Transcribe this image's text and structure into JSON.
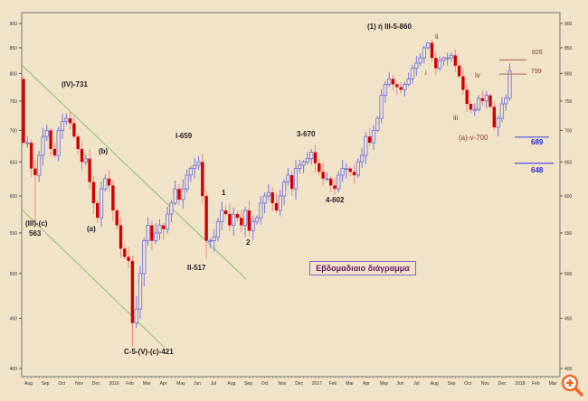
{
  "chart_data": {
    "type": "candlestick",
    "title": "Εβδομαδιαιο διάγραμμα",
    "scale": "log",
    "ylim": [
      400,
      900
    ],
    "yticks": [
      400,
      450,
      500,
      550,
      600,
      650,
      700,
      750,
      800,
      850,
      900
    ],
    "xticks": [
      "Aug",
      "Sep",
      "Oct",
      "Nov",
      "Dec",
      "2016",
      "Feb",
      "Mar",
      "Apr",
      "May",
      "Jun",
      "Jul",
      "Aug",
      "Sep",
      "Oct",
      "Nov",
      "Dec",
      "2017",
      "Feb",
      "Mar",
      "Apr",
      "May",
      "Jun",
      "Jul",
      "Aug",
      "Sep",
      "Oct",
      "Nov",
      "Dec",
      "2018",
      "Feb",
      "Mar"
    ],
    "closes": [
      680,
      680,
      640,
      630,
      660,
      690,
      700,
      670,
      660,
      700,
      715,
      720,
      712,
      690,
      670,
      650,
      655,
      620,
      590,
      570,
      610,
      625,
      615,
      580,
      560,
      530,
      520,
      515,
      445,
      460,
      500,
      540,
      560,
      540,
      550,
      560,
      555,
      575,
      590,
      610,
      595,
      610,
      630,
      640,
      645,
      650,
      600,
      540,
      540,
      545,
      565,
      580,
      575,
      560,
      575,
      570,
      560,
      580,
      553,
      565,
      570,
      590,
      600,
      605,
      590,
      580,
      600,
      620,
      630,
      610,
      640,
      645,
      650,
      655,
      665,
      648,
      635,
      625,
      625,
      615,
      610,
      630,
      640,
      640,
      635,
      630,
      650,
      660,
      690,
      680,
      700,
      720,
      760,
      780,
      790,
      780,
      775,
      770,
      780,
      790,
      810,
      820,
      830,
      850,
      860,
      830,
      810,
      825,
      830,
      830,
      835,
      815,
      795,
      770,
      745,
      735,
      735,
      755,
      750,
      760,
      740,
      705,
      720,
      745,
      755,
      805
    ],
    "first_open": 790,
    "extremes": {
      "0": {
        "h": 795
      },
      "3": {
        "l": 563
      },
      "12": {
        "h": 731
      },
      "28": {
        "l": 421
      },
      "45": {
        "h": 659
      },
      "47": {
        "l": 517
      },
      "74": {
        "h": 670
      },
      "80": {
        "l": 602
      },
      "104": {
        "h": 860
      },
      "121": {
        "l": 700
      }
    },
    "levels": [
      {
        "value": 826,
        "label": "826",
        "color": "#b07868"
      },
      {
        "value": 799,
        "label": "799",
        "color": "#b07868"
      },
      {
        "value": 689,
        "label": "689",
        "color": "#5050e0"
      },
      {
        "value": 648,
        "label": "648",
        "color": "#5050e0"
      }
    ],
    "annotations": {
      "iv_731": "(IV)-731",
      "b": "(b)",
      "a": "(a)",
      "iii_c": "(III)-(c)",
      "v563": "563",
      "c5": "C-5-(V)-(c)-421",
      "I659": "I-659",
      "II517": "II-517",
      "w1": "1",
      "w2": "2",
      "w3": "3-670",
      "w4": "4-602",
      "top": "(1) ή III-5-860",
      "sii": "ii",
      "si": "i",
      "siii": "iii",
      "siv": "iv",
      "sv": "(a)-v-700"
    },
    "colors": {
      "up": "#7878e0",
      "down": "#d40000",
      "down_wick": "#f08a8a",
      "channel": "#8cc070"
    }
  }
}
